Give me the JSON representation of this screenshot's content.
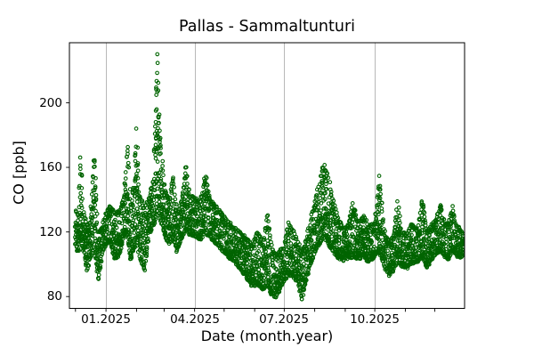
{
  "chart_data": {
    "type": "scatter",
    "title": "Pallas - Sammaltunturi",
    "xlabel": "Date (month.year)",
    "ylabel": "CO [ppb]",
    "x_tick_labels": [
      "01.2025",
      "04.2025",
      "07.2025",
      "10.2025"
    ],
    "y_tick_labels": [
      "80",
      "120",
      "160",
      "200"
    ],
    "y_ticks_ppb": [
      80,
      120,
      160,
      200
    ],
    "ylim_ppb": [
      72.5,
      237
    ],
    "x_start_date": "2024-12-01",
    "x_end_date": "2025-12-30",
    "x_minor_ticks": "monthly",
    "month_start_days": [
      0,
      31,
      62,
      90,
      121,
      151,
      182,
      212,
      243,
      274,
      304,
      335,
      365
    ],
    "major_tick_month_indices": [
      1,
      4,
      7,
      10
    ],
    "grid": {
      "axis": "x",
      "color": "#b0b0b0"
    },
    "marker": {
      "shape": "open-circle",
      "color": "#006400",
      "radius_px": 1.8,
      "stroke_px": 1.1
    },
    "spine_color": "#000000",
    "background": "#ffffff",
    "notable": {
      "max_ppb": 230,
      "max_when": "late Feb 2025",
      "min_ppb": 78,
      "min_when": "mid Jul / early Aug 2025",
      "winter_baseline_ppb": "110-135",
      "summer_minimum_band_ppb": "80-110"
    },
    "envelope_day_min_max_ppb": [
      [
        0,
        112,
        134
      ],
      [
        3,
        106,
        130
      ],
      [
        5,
        116,
        168
      ],
      [
        8,
        108,
        132
      ],
      [
        12,
        96,
        126
      ],
      [
        15,
        104,
        126
      ],
      [
        19,
        110,
        166
      ],
      [
        23,
        89,
        120
      ],
      [
        27,
        106,
        124
      ],
      [
        31,
        112,
        132
      ],
      [
        35,
        114,
        136
      ],
      [
        40,
        102,
        132
      ],
      [
        45,
        106,
        134
      ],
      [
        49,
        118,
        142
      ],
      [
        53,
        116,
        176
      ],
      [
        56,
        100,
        138
      ],
      [
        60,
        110,
        152
      ],
      [
        62,
        114,
        187
      ],
      [
        65,
        104,
        144
      ],
      [
        70,
        95,
        136
      ],
      [
        75,
        118,
        142
      ],
      [
        79,
        124,
        152
      ],
      [
        83,
        130,
        230
      ],
      [
        86,
        126,
        178
      ],
      [
        90,
        118,
        152
      ],
      [
        95,
        112,
        138
      ],
      [
        99,
        116,
        155
      ],
      [
        103,
        107,
        132
      ],
      [
        108,
        116,
        140
      ],
      [
        112,
        120,
        160
      ],
      [
        116,
        118,
        142
      ],
      [
        121,
        117,
        142
      ],
      [
        127,
        115,
        139
      ],
      [
        132,
        119,
        157
      ],
      [
        137,
        116,
        140
      ],
      [
        142,
        113,
        137
      ],
      [
        148,
        109,
        132
      ],
      [
        154,
        105,
        127
      ],
      [
        160,
        102,
        124
      ],
      [
        167,
        97,
        120
      ],
      [
        174,
        91,
        116
      ],
      [
        180,
        86,
        112
      ],
      [
        185,
        88,
        121
      ],
      [
        190,
        84,
        112
      ],
      [
        195,
        86,
        131
      ],
      [
        200,
        80,
        110
      ],
      [
        204,
        79,
        106
      ],
      [
        208,
        84,
        109
      ],
      [
        212,
        89,
        110
      ],
      [
        216,
        93,
        126
      ],
      [
        221,
        92,
        122
      ],
      [
        226,
        88,
        114
      ],
      [
        230,
        78,
        108
      ],
      [
        234,
        90,
        116
      ],
      [
        239,
        100,
        128
      ],
      [
        244,
        108,
        142
      ],
      [
        249,
        114,
        155
      ],
      [
        252,
        116,
        163
      ],
      [
        256,
        112,
        157
      ],
      [
        261,
        108,
        142
      ],
      [
        266,
        104,
        130
      ],
      [
        271,
        102,
        124
      ],
      [
        276,
        103,
        122
      ],
      [
        282,
        104,
        138
      ],
      [
        287,
        103,
        126
      ],
      [
        293,
        104,
        130
      ],
      [
        298,
        101,
        124
      ],
      [
        304,
        104,
        126
      ],
      [
        309,
        107,
        155
      ],
      [
        313,
        99,
        122
      ],
      [
        318,
        92,
        114
      ],
      [
        323,
        96,
        118
      ],
      [
        327,
        101,
        140
      ],
      [
        331,
        99,
        122
      ],
      [
        336,
        97,
        118
      ],
      [
        341,
        100,
        125
      ],
      [
        347,
        101,
        122
      ],
      [
        352,
        103,
        141
      ],
      [
        357,
        98,
        120
      ],
      [
        361,
        102,
        124
      ],
      [
        366,
        106,
        128
      ],
      [
        371,
        108,
        137
      ],
      [
        375,
        104,
        126
      ],
      [
        379,
        103,
        125
      ],
      [
        383,
        108,
        136
      ],
      [
        387,
        105,
        125
      ],
      [
        391,
        104,
        122
      ],
      [
        394,
        106,
        118
      ]
    ]
  }
}
